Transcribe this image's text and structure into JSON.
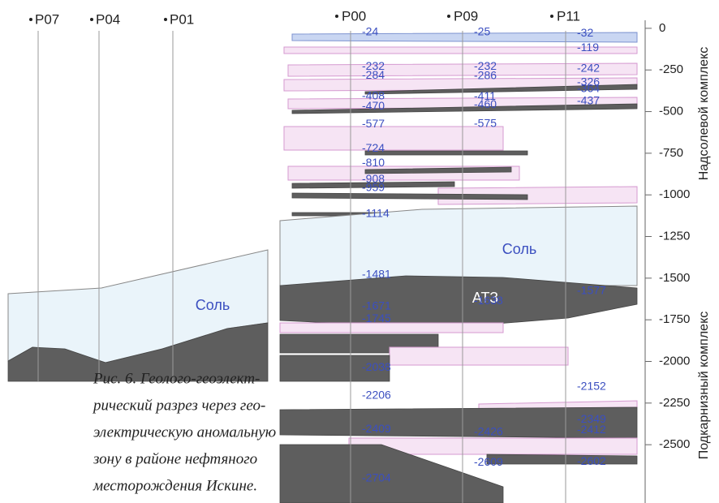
{
  "wells_left": [
    "P07",
    "P04",
    "P01"
  ],
  "wells": [
    {
      "name": "P00",
      "depths": [
        -24,
        -232,
        -284,
        -408,
        -470,
        -577,
        -724,
        -810,
        -908,
        -959,
        -1114,
        -1481,
        -1671,
        -1745,
        -2038,
        -2206,
        -2409,
        -2704
      ]
    },
    {
      "name": "P09",
      "depths": [
        -25,
        -232,
        -286,
        -411,
        -460,
        -575,
        -1638,
        -2426,
        -2609
      ]
    },
    {
      "name": "P11",
      "depths": [
        -32,
        -119,
        -242,
        -326,
        -364,
        -437,
        -1577,
        -2152,
        -2349,
        -2412,
        -2602
      ]
    }
  ],
  "depth_axis": {
    "ylim": [
      170,
      -2850
    ],
    "yticks": [
      0,
      -250,
      -500,
      -750,
      -1000,
      -1250,
      -1500,
      -1750,
      -2000,
      -2250,
      -2500
    ]
  },
  "axis_labels": [
    "Надсолевой комплекс",
    "Подкарнизный комплекс"
  ],
  "region_labels": {
    "salt_left": "Соль",
    "salt_right": "Соль",
    "atz": "АТЗ"
  },
  "caption": [
    "Рис. 6. Геолого-геоэлект-",
    "рический разрез через гео-",
    "электрическую аномальную",
    "зону в районе нефтяного",
    "месторождения Искине."
  ]
}
